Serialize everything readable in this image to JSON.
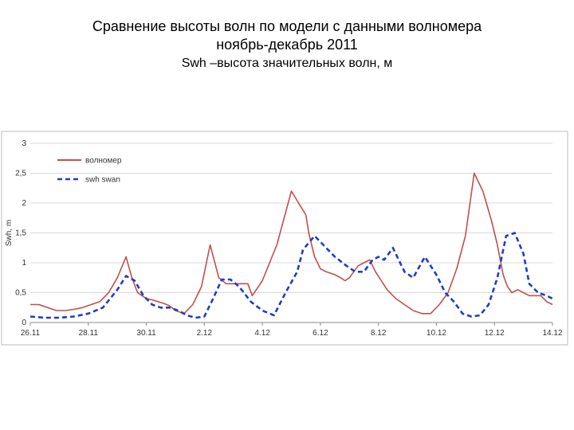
{
  "slide": {
    "title_line1": "Сравнение высоты волн по модели с данными волномера",
    "title_line2": "ноябрь-декабрь 2011",
    "subtitle": "Swh –высота значительных волн, м"
  },
  "chart_data": {
    "type": "line",
    "title": "",
    "ylabel": "Swh, m",
    "xlabel": "",
    "ylim": [
      0,
      3
    ],
    "yticks": [
      "0",
      "0,5",
      "1",
      "1,5",
      "2",
      "2,5",
      "3"
    ],
    "xlim": [
      0,
      18
    ],
    "xtick_labels": [
      "26.11",
      "28.11",
      "30.11",
      "2.12",
      "4.12",
      "6.12",
      "8.12",
      "10.12",
      "12.12",
      "14.12"
    ],
    "grid": true,
    "legend_position": "top-left",
    "series": [
      {
        "name": "волномер",
        "color": "#c0504d",
        "style": "solid",
        "x": [
          0,
          0.3,
          0.6,
          0.9,
          1.2,
          1.5,
          1.8,
          2.1,
          2.4,
          2.7,
          3.0,
          3.3,
          3.5,
          3.7,
          3.85,
          4.0,
          4.2,
          4.4,
          4.6,
          4.8,
          5.0,
          5.3,
          5.6,
          5.9,
          6.2,
          6.5,
          6.75,
          7.0,
          7.2,
          7.4,
          7.5,
          7.65,
          8.0,
          8.5,
          9.0,
          9.5,
          9.6,
          9.8,
          10.0,
          10.2,
          10.5,
          10.7,
          10.85,
          11.0,
          11.15,
          11.3,
          11.5,
          11.7,
          11.9,
          12.1,
          12.3,
          12.6,
          12.9,
          13.2,
          13.5,
          13.8,
          14.1,
          14.4,
          14.7,
          15.0,
          15.3,
          15.6,
          15.9,
          16.1,
          16.3,
          16.45,
          16.6,
          16.8,
          17.0,
          17.2,
          17.4,
          17.6,
          17.8,
          18.0
        ],
        "values": [
          0.3,
          0.3,
          0.25,
          0.2,
          0.2,
          0.22,
          0.25,
          0.3,
          0.35,
          0.5,
          0.75,
          1.1,
          0.75,
          0.5,
          0.45,
          0.4,
          0.38,
          0.35,
          0.32,
          0.28,
          0.2,
          0.15,
          0.3,
          0.6,
          1.3,
          0.75,
          0.65,
          0.65,
          0.65,
          0.65,
          0.65,
          0.45,
          0.7,
          1.3,
          2.2,
          1.8,
          1.5,
          1.1,
          0.9,
          0.85,
          0.8,
          0.75,
          0.7,
          0.75,
          0.85,
          0.95,
          1.0,
          1.05,
          0.85,
          0.7,
          0.55,
          0.4,
          0.3,
          0.2,
          0.15,
          0.15,
          0.3,
          0.5,
          0.9,
          1.45,
          2.5,
          2.2,
          1.7,
          1.3,
          0.8,
          0.6,
          0.5,
          0.55,
          0.5,
          0.45,
          0.45,
          0.45,
          0.35,
          0.3
        ]
      },
      {
        "name": "swh swan",
        "color": "#1f3fbf",
        "style": "dashed",
        "x": [
          0,
          0.5,
          1.0,
          1.5,
          2.0,
          2.5,
          3.0,
          3.3,
          3.6,
          3.9,
          4.2,
          4.5,
          4.8,
          5.1,
          5.4,
          5.7,
          6.0,
          6.3,
          6.6,
          6.9,
          7.2,
          7.6,
          8.0,
          8.4,
          8.8,
          9.2,
          9.4,
          9.8,
          10.1,
          10.5,
          10.9,
          11.2,
          11.5,
          11.8,
          12.0,
          12.2,
          12.5,
          12.7,
          12.9,
          13.2,
          13.6,
          14.0,
          14.3,
          14.6,
          14.9,
          15.2,
          15.5,
          15.8,
          16.1,
          16.4,
          16.7,
          17.0,
          17.2,
          17.5,
          17.8,
          18.0
        ],
        "values": [
          0.1,
          0.08,
          0.08,
          0.1,
          0.15,
          0.25,
          0.55,
          0.78,
          0.7,
          0.45,
          0.3,
          0.25,
          0.25,
          0.2,
          0.12,
          0.08,
          0.1,
          0.4,
          0.72,
          0.72,
          0.6,
          0.35,
          0.2,
          0.12,
          0.5,
          0.85,
          1.22,
          1.45,
          1.3,
          1.1,
          0.95,
          0.85,
          0.85,
          1.05,
          1.1,
          1.05,
          1.25,
          1.05,
          0.85,
          0.75,
          1.1,
          0.8,
          0.5,
          0.35,
          0.15,
          0.1,
          0.12,
          0.3,
          0.75,
          1.45,
          1.5,
          1.15,
          0.65,
          0.5,
          0.45,
          0.4
        ]
      }
    ]
  }
}
